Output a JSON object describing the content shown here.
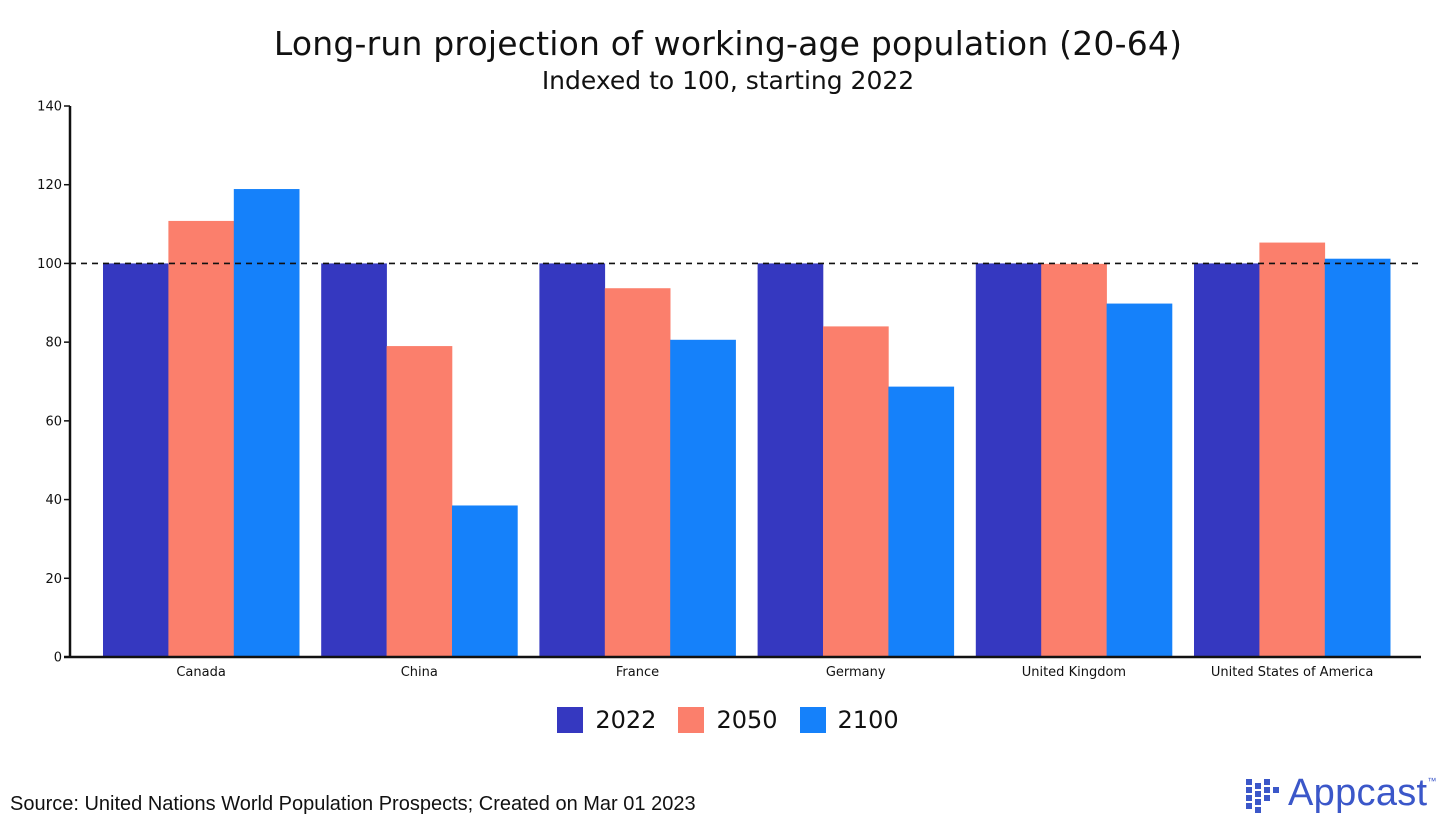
{
  "chart_data": {
    "type": "bar",
    "title": "Long-run projection of working-age population (20-64)",
    "subtitle": "Indexed to 100, starting 2022",
    "categories": [
      "Canada",
      "China",
      "France",
      "Germany",
      "United Kingdom",
      "United States of America"
    ],
    "series": [
      {
        "name": "2022",
        "color": "#3538c0",
        "values": [
          100,
          100,
          100,
          100,
          100,
          100
        ]
      },
      {
        "name": "2050",
        "color": "#fb7f6c",
        "values": [
          110.8,
          79,
          93.7,
          84,
          99.9,
          105.3
        ]
      },
      {
        "name": "2100",
        "color": "#1581fa",
        "values": [
          118.9,
          38.5,
          80.6,
          68.7,
          89.8,
          101.2
        ]
      }
    ],
    "ylim": [
      0,
      140
    ],
    "yticks": [
      0,
      20,
      40,
      60,
      80,
      100,
      120,
      140
    ],
    "reference_line": 100,
    "legend_position": "bottom-center",
    "xlabel": "",
    "ylabel": ""
  },
  "footer": {
    "source": "Source: United Nations World Population Prospects; Created on Mar 01 2023",
    "logo_text": "Appcast",
    "logo_tm": "™"
  }
}
